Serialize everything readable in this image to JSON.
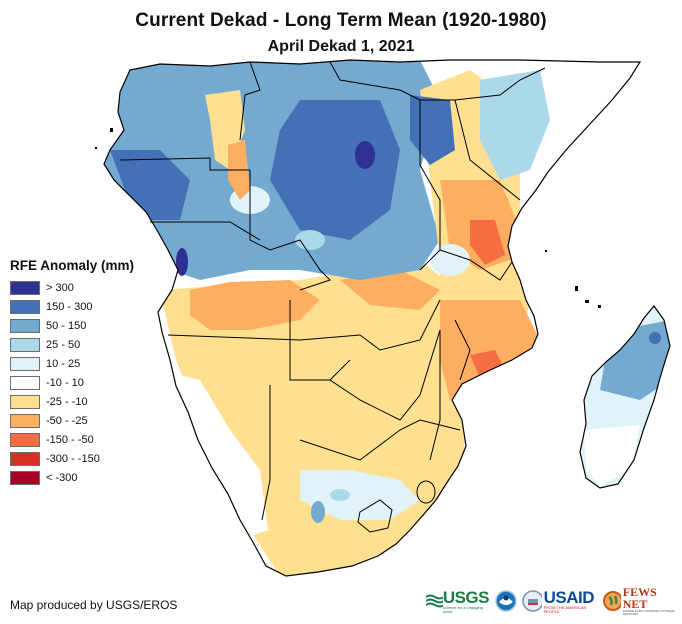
{
  "header": {
    "title": "Current Dekad - Long Term Mean (1920-1980)",
    "subtitle": "April Dekad 1, 2021"
  },
  "legend": {
    "title": "RFE Anomaly (mm)",
    "items": [
      {
        "label": "> 300",
        "color": "#2e3192"
      },
      {
        "label": "150 - 300",
        "color": "#4470b6"
      },
      {
        "label": "50 - 150",
        "color": "#74a9d0"
      },
      {
        "label": "25 - 50",
        "color": "#abd9e9"
      },
      {
        "label": "10 - 25",
        "color": "#e0f3f8"
      },
      {
        "label": "-10 - 10",
        "color": "#ffffff"
      },
      {
        "label": "-25 - -10",
        "color": "#fee090"
      },
      {
        "label": "-50 - -25",
        "color": "#fdae61"
      },
      {
        "label": "-150 - -50",
        "color": "#f46d43"
      },
      {
        "label": "-300 - -150",
        "color": "#d73027"
      },
      {
        "label": "< -300",
        "color": "#a50026"
      }
    ]
  },
  "footer": {
    "credit": "Map produced by USGS/EROS",
    "logos": {
      "usgs": "USGS",
      "usgs_tagline": "science for a changing world",
      "noaa": "NOAA",
      "usaid": "USAID",
      "usaid_tagline": "FROM THE AMERICAN PEOPLE",
      "fews": "FEWS NET",
      "fews_tagline": "FAMINE EARLY WARNING SYSTEMS NETWORK"
    }
  },
  "map": {
    "region": "Central, Eastern and Southern Africa with Madagascar",
    "variable": "Rainfall estimate anomaly (mm)",
    "regions": [
      {
        "name": "Central Africa / Congo Basin",
        "class": "50 - 150"
      },
      {
        "name": "Gabon / Equatorial Guinea coast",
        "class": "150 - 300"
      },
      {
        "name": "Eastern DRC core",
        "class": "150 - 300"
      },
      {
        "name": "Angola coast",
        "class": "> 300"
      },
      {
        "name": "Kenya / Tanzania interior",
        "class": "-50 - -25"
      },
      {
        "name": "Central Tanzania",
        "class": "-150 - -50"
      },
      {
        "name": "Mozambique",
        "class": "-50 - -25"
      },
      {
        "name": "Southern Africa interior",
        "class": "-25 - -10"
      },
      {
        "name": "Namibia west",
        "class": "-10 - 10"
      },
      {
        "name": "South Africa highveld",
        "class": "10 - 25"
      },
      {
        "name": "Northern Madagascar",
        "class": "50 - 150"
      },
      {
        "name": "Southern Madagascar",
        "class": "10 - 25"
      }
    ]
  }
}
